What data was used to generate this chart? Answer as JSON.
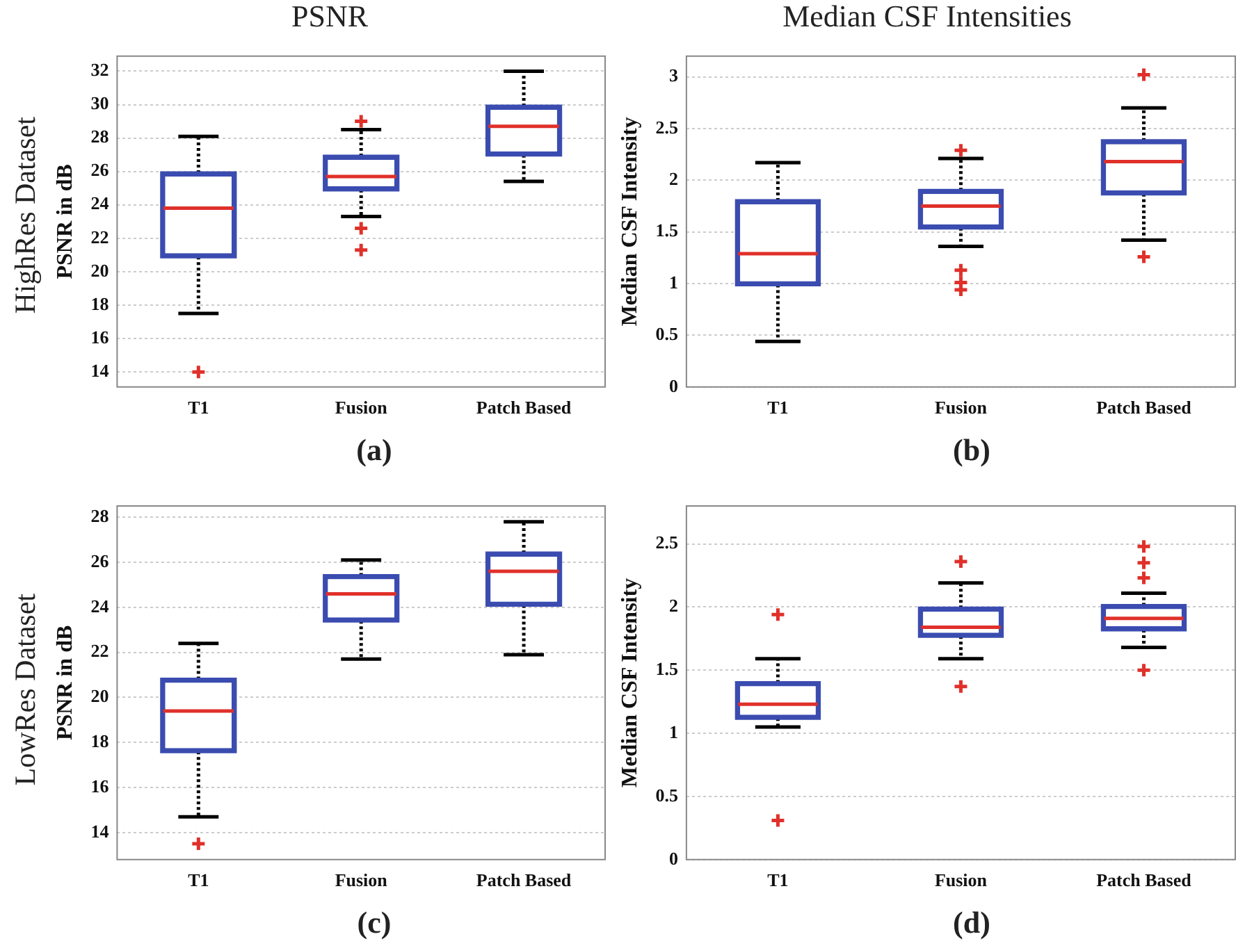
{
  "chart_data": [
    {
      "type": "box",
      "title": "PSNR",
      "ylabel": "PSNR in dB",
      "categories": [
        "T1",
        "Fusion",
        "Patch Based"
      ],
      "ylim": [
        13.1,
        32.9
      ],
      "yticks": [
        14,
        16,
        18,
        20,
        22,
        24,
        26,
        28,
        30,
        32
      ],
      "grid": "y",
      "annotations": [
        "HighRes Dataset",
        "(a)"
      ],
      "series": [
        {
          "color": "#3b4cb0",
          "boxes": [
            {
              "low": 17.5,
              "q1": 20.9,
              "median": 23.8,
              "q3": 25.9,
              "high": 28.1,
              "outliers": [
                14
              ]
            },
            {
              "low": 23.3,
              "q1": 24.9,
              "median": 25.7,
              "q3": 26.9,
              "high": 28.5,
              "outliers": [
                29,
                22.6,
                21.3
              ]
            },
            {
              "low": 25.4,
              "q1": 27,
              "median": 28.7,
              "q3": 29.9,
              "high": 32
            }
          ]
        }
      ]
    },
    {
      "type": "box",
      "title": "Median CSF Intensities",
      "ylabel": "Median CSF Intensity",
      "categories": [
        "T1",
        "Fusion",
        "Patch Based"
      ],
      "ylim": [
        0,
        3.2
      ],
      "yticks": [
        0,
        0.5,
        1,
        1.5,
        2,
        2.5,
        3
      ],
      "grid": "y",
      "annotations": [
        "(b)"
      ],
      "series": [
        {
          "color": "#3b4cb0",
          "boxes": [
            {
              "low": 0.44,
              "q1": 0.99,
              "median": 1.29,
              "q3": 1.8,
              "high": 2.17
            },
            {
              "low": 1.36,
              "q1": 1.54,
              "median": 1.75,
              "q3": 1.9,
              "high": 2.21,
              "outliers": [
                2.29,
                1.13,
                1.01,
                0.94
              ]
            },
            {
              "low": 1.42,
              "q1": 1.87,
              "median": 2.18,
              "q3": 2.38,
              "high": 2.7,
              "outliers": [
                3.02,
                1.26
              ]
            }
          ]
        }
      ]
    },
    {
      "type": "box",
      "ylabel": "PSNR in dB",
      "categories": [
        "T1",
        "Fusion",
        "Patch Based"
      ],
      "ylim": [
        12.8,
        28.5
      ],
      "yticks": [
        14,
        16,
        18,
        20,
        22,
        24,
        26,
        28
      ],
      "grid": "y",
      "annotations": [
        "LowRes Dataset",
        "(c)"
      ],
      "series": [
        {
          "color": "#3b4cb0",
          "boxes": [
            {
              "low": 14.7,
              "q1": 17.6,
              "median": 19.4,
              "q3": 20.8,
              "high": 22.4,
              "outliers": [
                13.5
              ]
            },
            {
              "low": 21.7,
              "q1": 23.4,
              "median": 24.6,
              "q3": 25.4,
              "high": 26.1
            },
            {
              "low": 21.9,
              "q1": 24.1,
              "median": 25.6,
              "q3": 26.4,
              "high": 27.8
            }
          ]
        }
      ]
    },
    {
      "type": "box",
      "ylabel": "Median CSF Intensity",
      "categories": [
        "T1",
        "Fusion",
        "Patch Based"
      ],
      "ylim": [
        0,
        2.8
      ],
      "yticks": [
        0,
        0.5,
        1,
        1.5,
        2,
        2.5
      ],
      "grid": "y",
      "annotations": [
        "(d)"
      ],
      "series": [
        {
          "color": "#3b4cb0",
          "boxes": [
            {
              "low": 1.05,
              "q1": 1.12,
              "median": 1.23,
              "q3": 1.4,
              "high": 1.59,
              "outliers": [
                1.94,
                0.31
              ]
            },
            {
              "low": 1.59,
              "q1": 1.77,
              "median": 1.84,
              "q3": 1.99,
              "high": 2.19,
              "outliers": [
                2.36,
                1.37
              ]
            },
            {
              "low": 1.68,
              "q1": 1.82,
              "median": 1.91,
              "q3": 2.01,
              "high": 2.11,
              "outliers": [
                2.48,
                2.35,
                2.23,
                1.5
              ]
            }
          ]
        }
      ]
    }
  ]
}
